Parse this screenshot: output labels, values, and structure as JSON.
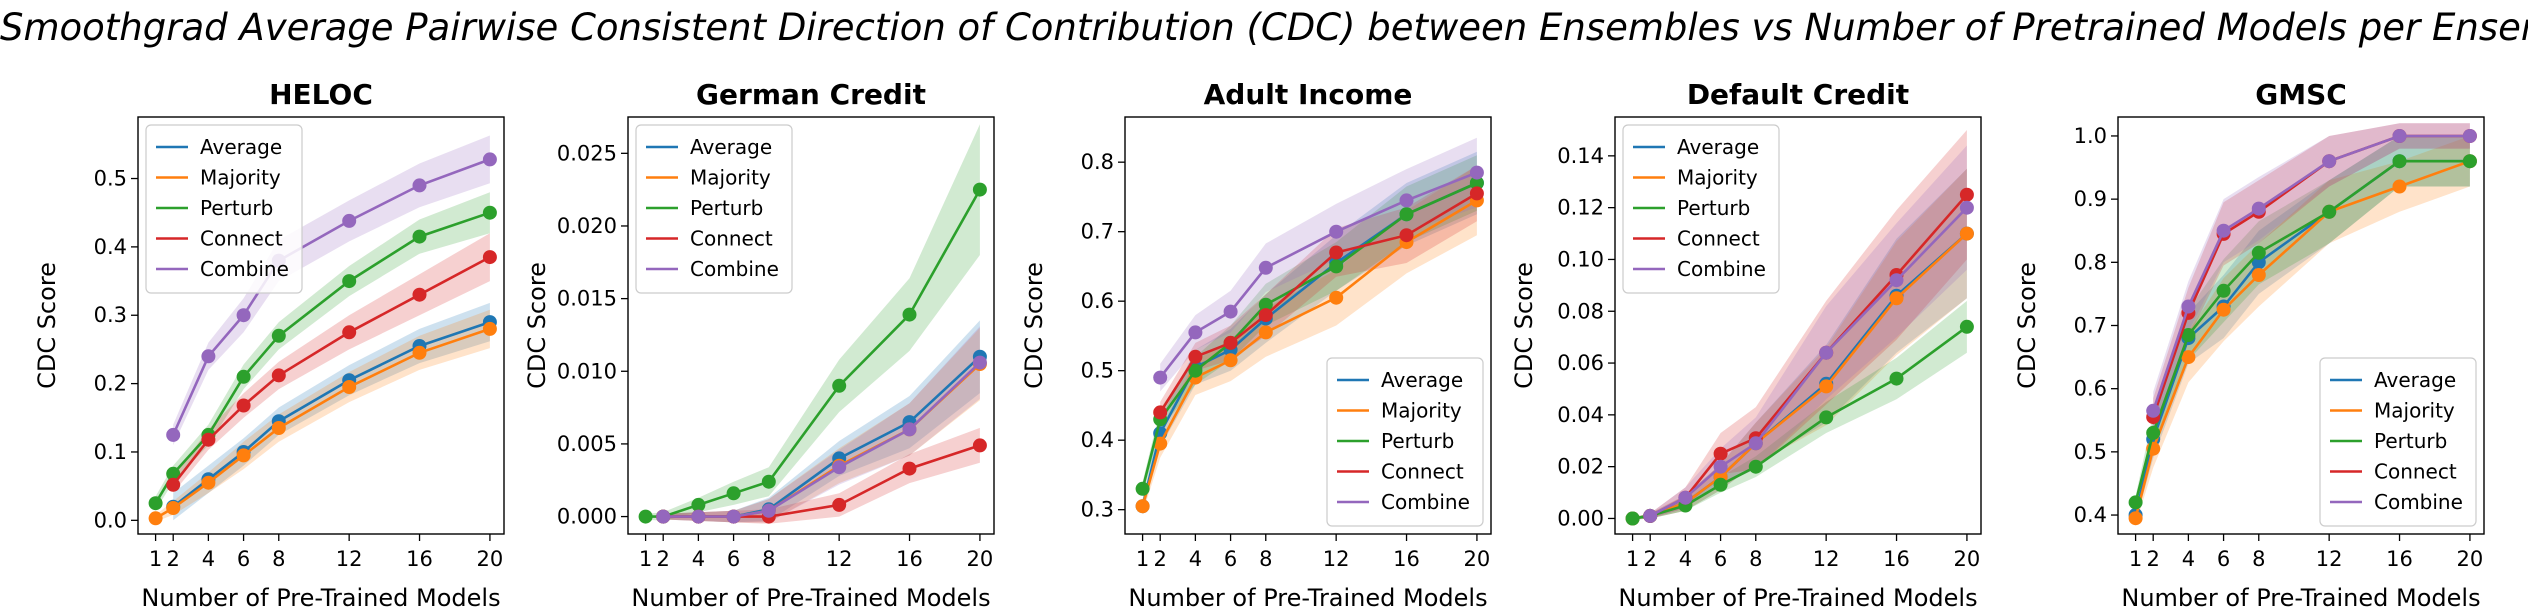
{
  "figure_title": "Smoothgrad Average Pairwise Consistent Direction of Contribution (CDC) between Ensembles vs Number of Pretrained Models per Ensemble",
  "colors": {
    "Average": "#1f77b4",
    "Majority": "#ff7f0e",
    "Perturb": "#2ca02c",
    "Connect": "#d62728",
    "Combine": "#9467bd"
  },
  "chart_data": [
    {
      "type": "line",
      "title": "HELOC",
      "xlabel": "Number of Pre-Trained Models",
      "ylabel": "CDC Score",
      "x": [
        1,
        2,
        4,
        6,
        8,
        12,
        16,
        20
      ],
      "xticks": [
        1,
        2,
        4,
        6,
        8,
        12,
        16,
        20
      ],
      "xlim": [
        0,
        20.8
      ],
      "ylim": [
        -0.02,
        0.59
      ],
      "yticks": [
        0.0,
        0.1,
        0.2,
        0.3,
        0.4,
        0.5
      ],
      "ytick_labels": [
        "0.0",
        "0.1",
        "0.2",
        "0.3",
        "0.4",
        "0.5"
      ],
      "legend_loc": "top-left",
      "series": [
        {
          "name": "Average",
          "values": [
            null,
            0.02,
            0.06,
            0.1,
            0.145,
            0.205,
            0.255,
            0.29
          ],
          "band": [
            0.02,
            0.02,
            0.02,
            0.02,
            0.02,
            0.022,
            0.025,
            0.028
          ]
        },
        {
          "name": "Majority",
          "values": [
            0.003,
            0.018,
            0.055,
            0.095,
            0.135,
            0.195,
            0.245,
            0.28
          ],
          "band": [
            0.005,
            0.01,
            0.015,
            0.02,
            0.02,
            0.022,
            0.025,
            0.028
          ]
        },
        {
          "name": "Perturb",
          "values": [
            0.025,
            0.068,
            0.125,
            0.21,
            0.27,
            0.35,
            0.415,
            0.45
          ],
          "band": [
            0.01,
            0.012,
            0.015,
            0.018,
            0.02,
            0.022,
            0.025,
            0.03
          ]
        },
        {
          "name": "Connect",
          "values": [
            null,
            0.052,
            0.118,
            0.168,
            0.212,
            0.275,
            0.33,
            0.385
          ],
          "band": [
            0.01,
            0.012,
            0.015,
            0.018,
            0.02,
            0.025,
            0.03,
            0.035
          ]
        },
        {
          "name": "Combine",
          "values": [
            null,
            0.125,
            0.24,
            0.3,
            0.38,
            0.438,
            0.49,
            0.528
          ],
          "band": [
            0.01,
            0.015,
            0.02,
            0.025,
            0.03,
            0.03,
            0.032,
            0.035
          ]
        }
      ]
    },
    {
      "type": "line",
      "title": "German Credit",
      "xlabel": "Number of Pre-Trained Models",
      "ylabel": "CDC Score",
      "x": [
        1,
        2,
        4,
        6,
        8,
        12,
        16,
        20
      ],
      "xticks": [
        1,
        2,
        4,
        6,
        8,
        12,
        16,
        20
      ],
      "xlim": [
        0,
        20.8
      ],
      "ylim": [
        -0.0012,
        0.0275
      ],
      "yticks": [
        0.0,
        0.005,
        0.01,
        0.015,
        0.02,
        0.025
      ],
      "ytick_labels": [
        "0.000",
        "0.005",
        "0.010",
        "0.015",
        "0.020",
        "0.025"
      ],
      "legend_loc": "top-left",
      "series": [
        {
          "name": "Average",
          "values": [
            null,
            0.0,
            0.0,
            0.0,
            0.0005,
            0.004,
            0.0065,
            0.011
          ],
          "band": [
            0,
            0.0002,
            0.0003,
            0.0004,
            0.0008,
            0.0012,
            0.0018,
            0.0025
          ]
        },
        {
          "name": "Majority",
          "values": [
            null,
            0.0,
            0.0,
            0.0,
            0.0004,
            0.0035,
            0.006,
            0.0105
          ],
          "band": [
            0,
            0.0002,
            0.0003,
            0.0004,
            0.0008,
            0.0012,
            0.0018,
            0.0025
          ]
        },
        {
          "name": "Perturb",
          "values": [
            0.0,
            0.0,
            0.0008,
            0.0016,
            0.0024,
            0.009,
            0.0139,
            0.0225
          ],
          "band": [
            0.0002,
            0.0003,
            0.0005,
            0.0008,
            0.001,
            0.0018,
            0.0025,
            0.0045
          ]
        },
        {
          "name": "Connect",
          "values": [
            null,
            0.0,
            0.0,
            0.0,
            0.0,
            0.0008,
            0.0033,
            0.0049
          ],
          "band": [
            0,
            0.0002,
            0.0003,
            0.0004,
            0.0005,
            0.0008,
            0.001,
            0.0012
          ]
        },
        {
          "name": "Combine",
          "values": [
            null,
            0.0,
            0.0,
            0.0,
            0.0004,
            0.0034,
            0.006,
            0.0106
          ],
          "band": [
            0,
            0.0002,
            0.0003,
            0.0004,
            0.0008,
            0.0012,
            0.0018,
            0.0025
          ]
        }
      ]
    },
    {
      "type": "line",
      "title": "Adult Income",
      "xlabel": "Number of Pre-Trained Models",
      "ylabel": "CDC Score",
      "x": [
        1,
        2,
        4,
        6,
        8,
        12,
        16,
        20
      ],
      "xticks": [
        1,
        2,
        4,
        6,
        8,
        12,
        16,
        20
      ],
      "xlim": [
        0,
        20.8
      ],
      "ylim": [
        0.265,
        0.865
      ],
      "yticks": [
        0.3,
        0.4,
        0.5,
        0.6,
        0.7,
        0.8
      ],
      "ytick_labels": [
        "0.3",
        "0.4",
        "0.5",
        "0.6",
        "0.7",
        "0.8"
      ],
      "legend_loc": "bottom-right",
      "series": [
        {
          "name": "Average",
          "values": [
            0.305,
            0.41,
            0.505,
            0.53,
            0.575,
            0.655,
            0.725,
            0.77
          ],
          "band": [
            0.01,
            0.02,
            0.025,
            0.03,
            0.035,
            0.04,
            0.045,
            0.045
          ]
        },
        {
          "name": "Majority",
          "values": [
            0.305,
            0.395,
            0.49,
            0.515,
            0.555,
            0.605,
            0.685,
            0.745
          ],
          "band": [
            0.01,
            0.02,
            0.025,
            0.03,
            0.035,
            0.04,
            0.045,
            0.05
          ]
        },
        {
          "name": "Perturb",
          "values": [
            0.33,
            0.43,
            0.5,
            0.54,
            0.595,
            0.65,
            0.725,
            0.77
          ],
          "band": [
            0.01,
            0.015,
            0.02,
            0.025,
            0.03,
            0.035,
            0.04,
            0.04
          ]
        },
        {
          "name": "Connect",
          "values": [
            null,
            0.44,
            0.52,
            0.54,
            0.58,
            0.67,
            0.695,
            0.755
          ],
          "band": [
            0,
            0.015,
            0.02,
            0.025,
            0.03,
            0.035,
            0.04,
            0.04
          ]
        },
        {
          "name": "Combine",
          "values": [
            null,
            0.49,
            0.555,
            0.585,
            0.648,
            0.7,
            0.745,
            0.785
          ],
          "band": [
            0,
            0.02,
            0.025,
            0.03,
            0.035,
            0.04,
            0.045,
            0.05
          ]
        }
      ]
    },
    {
      "type": "line",
      "title": "Default Credit",
      "xlabel": "Number of Pre-Trained Models",
      "ylabel": "CDC Score",
      "x": [
        1,
        2,
        4,
        6,
        8,
        12,
        16,
        20
      ],
      "xticks": [
        1,
        2,
        4,
        6,
        8,
        12,
        16,
        20
      ],
      "xlim": [
        0,
        20.8
      ],
      "ylim": [
        -0.006,
        0.155
      ],
      "yticks": [
        0.0,
        0.02,
        0.04,
        0.06,
        0.08,
        0.1,
        0.12,
        0.14
      ],
      "ytick_labels": [
        "0.00",
        "0.02",
        "0.04",
        "0.06",
        "0.08",
        "0.10",
        "0.12",
        "0.14"
      ],
      "legend_loc": "top-left",
      "series": [
        {
          "name": "Average",
          "values": [
            0.0,
            0.001,
            0.006,
            0.016,
            0.029,
            0.052,
            0.086,
            0.11
          ],
          "band": [
            0.0005,
            0.001,
            0.003,
            0.005,
            0.008,
            0.015,
            0.022,
            0.025
          ]
        },
        {
          "name": "Majority",
          "values": [
            0.0,
            0.001,
            0.006,
            0.016,
            0.029,
            0.051,
            0.085,
            0.11
          ],
          "band": [
            0.0005,
            0.001,
            0.003,
            0.005,
            0.008,
            0.015,
            0.022,
            0.025
          ]
        },
        {
          "name": "Perturb",
          "values": [
            0.0,
            0.001,
            0.005,
            0.013,
            0.02,
            0.039,
            0.054,
            0.074
          ],
          "band": [
            0.0005,
            0.001,
            0.002,
            0.003,
            0.004,
            0.006,
            0.008,
            0.01
          ]
        },
        {
          "name": "Connect",
          "values": [
            null,
            0.001,
            0.008,
            0.025,
            0.031,
            0.064,
            0.094,
            0.125
          ],
          "band": [
            0,
            0.001,
            0.004,
            0.008,
            0.012,
            0.02,
            0.025,
            0.025
          ]
        },
        {
          "name": "Combine",
          "values": [
            null,
            0.001,
            0.008,
            0.02,
            0.029,
            0.064,
            0.092,
            0.12
          ],
          "band": [
            0,
            0.001,
            0.004,
            0.007,
            0.01,
            0.018,
            0.022,
            0.024
          ]
        }
      ]
    },
    {
      "type": "line",
      "title": "GMSC",
      "xlabel": "Number of Pre-Trained Models",
      "ylabel": "CDC Score",
      "x": [
        1,
        2,
        4,
        6,
        8,
        12,
        16,
        20
      ],
      "xticks": [
        1,
        2,
        4,
        6,
        8,
        12,
        16,
        20
      ],
      "xlim": [
        0,
        20.8
      ],
      "ylim": [
        0.37,
        1.03
      ],
      "yticks": [
        0.4,
        0.5,
        0.6,
        0.7,
        0.8,
        0.9,
        1.0
      ],
      "ytick_labels": [
        "0.4",
        "0.5",
        "0.6",
        "0.7",
        "0.8",
        "0.9",
        "1.0"
      ],
      "legend_loc": "bottom-right",
      "series": [
        {
          "name": "Average",
          "values": [
            0.4,
            0.52,
            0.68,
            0.73,
            0.8,
            0.88,
            0.96,
            0.96
          ],
          "band": [
            0.01,
            0.03,
            0.04,
            0.05,
            0.05,
            0.05,
            0.04,
            0.04
          ]
        },
        {
          "name": "Majority",
          "values": [
            0.395,
            0.505,
            0.65,
            0.725,
            0.78,
            0.88,
            0.92,
            0.96
          ],
          "band": [
            0.01,
            0.03,
            0.04,
            0.05,
            0.05,
            0.05,
            0.04,
            0.04
          ]
        },
        {
          "name": "Perturb",
          "values": [
            0.42,
            0.53,
            0.685,
            0.755,
            0.815,
            0.88,
            0.96,
            0.96
          ],
          "band": [
            0.01,
            0.03,
            0.04,
            0.05,
            0.05,
            0.05,
            0.04,
            0.04
          ]
        },
        {
          "name": "Connect",
          "values": [
            null,
            0.555,
            0.72,
            0.845,
            0.88,
            0.96,
            1.0,
            1.0
          ],
          "band": [
            0,
            0.03,
            0.04,
            0.05,
            0.05,
            0.04,
            0.02,
            0.02
          ]
        },
        {
          "name": "Combine",
          "values": [
            null,
            0.565,
            0.73,
            0.85,
            0.885,
            0.96,
            1.0,
            1.0
          ],
          "band": [
            0,
            0.03,
            0.04,
            0.05,
            0.05,
            0.04,
            0.02,
            0.02
          ]
        }
      ]
    }
  ]
}
